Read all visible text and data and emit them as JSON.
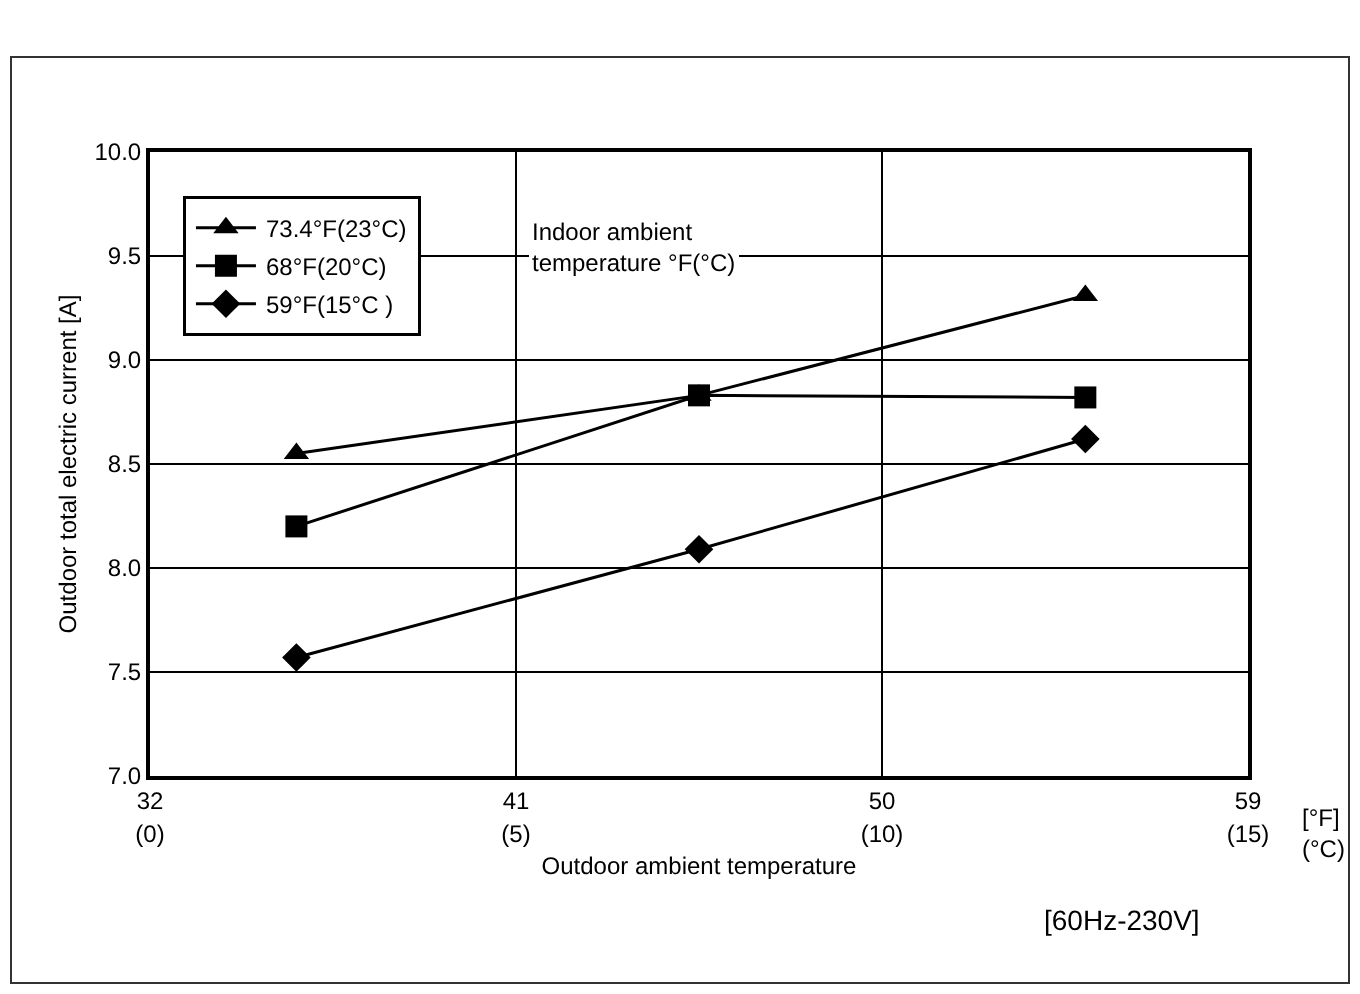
{
  "chart_data": {
    "type": "line",
    "xlabel": "Outdoor ambient temperature",
    "ylabel": "Outdoor total electric current [A]",
    "legend_title": "Indoor ambient temperature °F(°C)",
    "x": [
      35.6,
      45.5,
      55
    ],
    "series": [
      {
        "name": "73.4°F(23°C)",
        "color": "#000000",
        "marker": "triangle",
        "values": [
          8.55,
          8.83,
          9.31
        ]
      },
      {
        "name": "68°F(20°C)",
        "color": "#000000",
        "marker": "square",
        "values": [
          8.2,
          8.83,
          8.82
        ]
      },
      {
        "name": "59°F(15°C )",
        "color": "#000000",
        "marker": "diamond",
        "values": [
          7.57,
          8.09,
          8.62
        ]
      }
    ],
    "xlim": [
      32,
      59
    ],
    "xticks": [
      32,
      41,
      50,
      59
    ],
    "x2lim": [
      0,
      15
    ],
    "x2ticks": [
      {
        "value": 0,
        "label": "(0)"
      },
      {
        "value": 5,
        "label": "(5)"
      },
      {
        "value": 10,
        "label": "(10)"
      },
      {
        "value": 15,
        "label": "(15)"
      }
    ],
    "ylim": [
      7,
      10
    ],
    "yticks": [
      {
        "value": 7,
        "label": "7.0"
      },
      {
        "value": 7.5,
        "label": "7.5"
      },
      {
        "value": 8,
        "label": "8.0"
      },
      {
        "value": 8.5,
        "label": "8.5"
      },
      {
        "value": 9,
        "label": "9.0"
      },
      {
        "value": 9.5,
        "label": "9.5"
      },
      {
        "value": 10,
        "label": "10.0"
      }
    ],
    "grid": true,
    "legend": "top left",
    "line_style": "solid",
    "annotations": [
      "[°F]\n(°C)",
      "[60Hz-230V]"
    ]
  }
}
